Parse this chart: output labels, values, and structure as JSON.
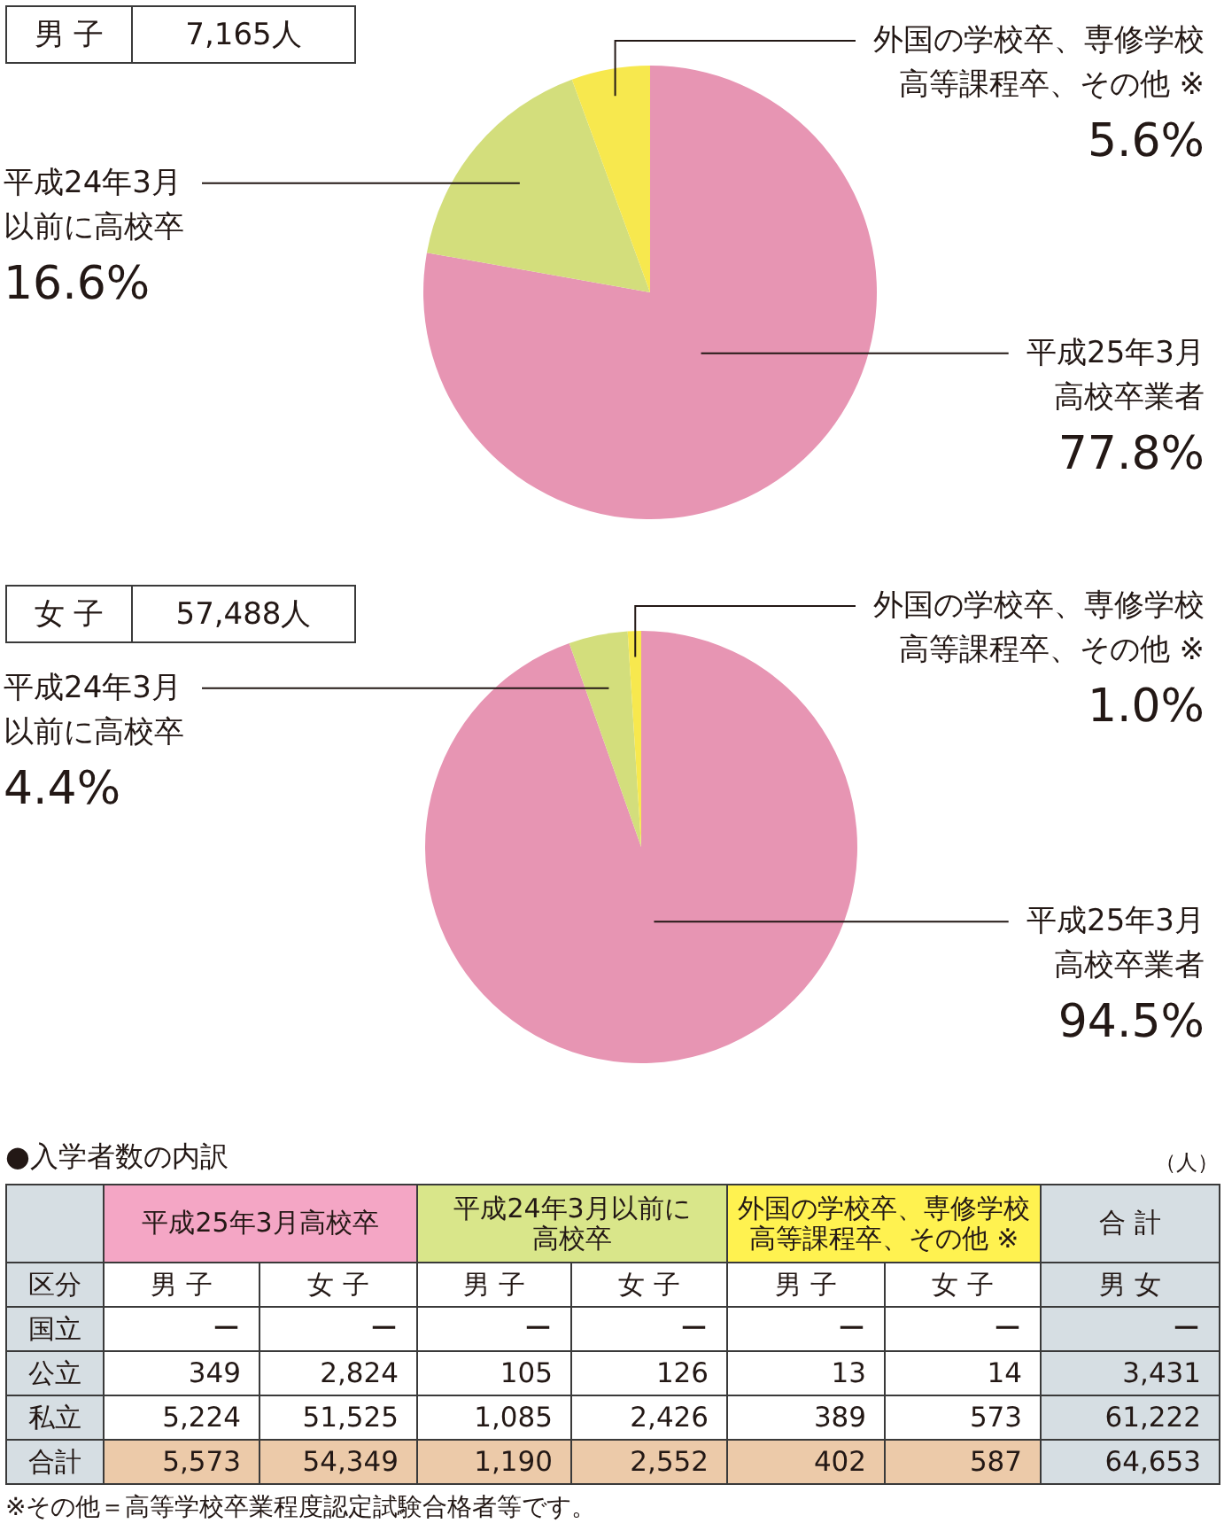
{
  "chart_data": [
    {
      "type": "pie",
      "title": "男 子",
      "subtitle": "7,165人",
      "categories": [
        "平成25年3月高校卒業者",
        "平成24年3月以前に高校卒",
        "外国の学校卒、専修学校高等課程卒、その他 ※"
      ],
      "values": [
        77.8,
        16.6,
        5.6
      ],
      "value_labels": [
        "77.8%",
        "16.6%",
        "5.6%"
      ],
      "colors": [
        "#e795b3",
        "#d3de7c",
        "#f7e84e"
      ]
    },
    {
      "type": "pie",
      "title": "女 子",
      "subtitle": "57,488人",
      "categories": [
        "平成25年3月高校卒業者",
        "平成24年3月以前に高校卒",
        "外国の学校卒、専修学校高等課程卒、その他 ※"
      ],
      "values": [
        94.5,
        4.4,
        1.0
      ],
      "value_labels": [
        "94.5%",
        "4.4%",
        "1.0%"
      ],
      "colors": [
        "#e795b3",
        "#d3de7c",
        "#f7e84e"
      ]
    },
    {
      "type": "heatmap",
      "title": "●入学者数の内訳",
      "ylabel": "区分",
      "categories": [
        "男 子",
        "女 子",
        "男 子",
        "女 子",
        "男 子",
        "女 子",
        "男 女"
      ],
      "y_categories": [
        "国立",
        "公立",
        "私立",
        "合計"
      ],
      "cells": [
        [
          null,
          null,
          null,
          null,
          null,
          null,
          null
        ],
        [
          349,
          2824,
          105,
          126,
          13,
          14,
          3431
        ],
        [
          5224,
          51525,
          1085,
          2426,
          389,
          573,
          61222
        ],
        [
          5573,
          54349,
          1190,
          2552,
          402,
          587,
          64653
        ]
      ],
      "cell_labels": [
        [
          "ー",
          "ー",
          "ー",
          "ー",
          "ー",
          "ー",
          "ー"
        ],
        [
          "349",
          "2,824",
          "105",
          "126",
          "13",
          "14",
          "3,431"
        ],
        [
          "5,224",
          "51,525",
          "1,085",
          "2,426",
          "389",
          "573",
          "61,222"
        ],
        [
          "5,573",
          "54,349",
          "1,190",
          "2,552",
          "402",
          "587",
          "64,653"
        ]
      ],
      "annotations": [
        "平成25年3月高校卒",
        "平成24年3月以前に高校卒",
        "外国の学校卒、専修学校高等課程卒、その他 ※",
        "合 計",
        "（人）",
        "※その他＝高等学校卒業程度認定試験合格者等です。"
      ]
    }
  ]
}
